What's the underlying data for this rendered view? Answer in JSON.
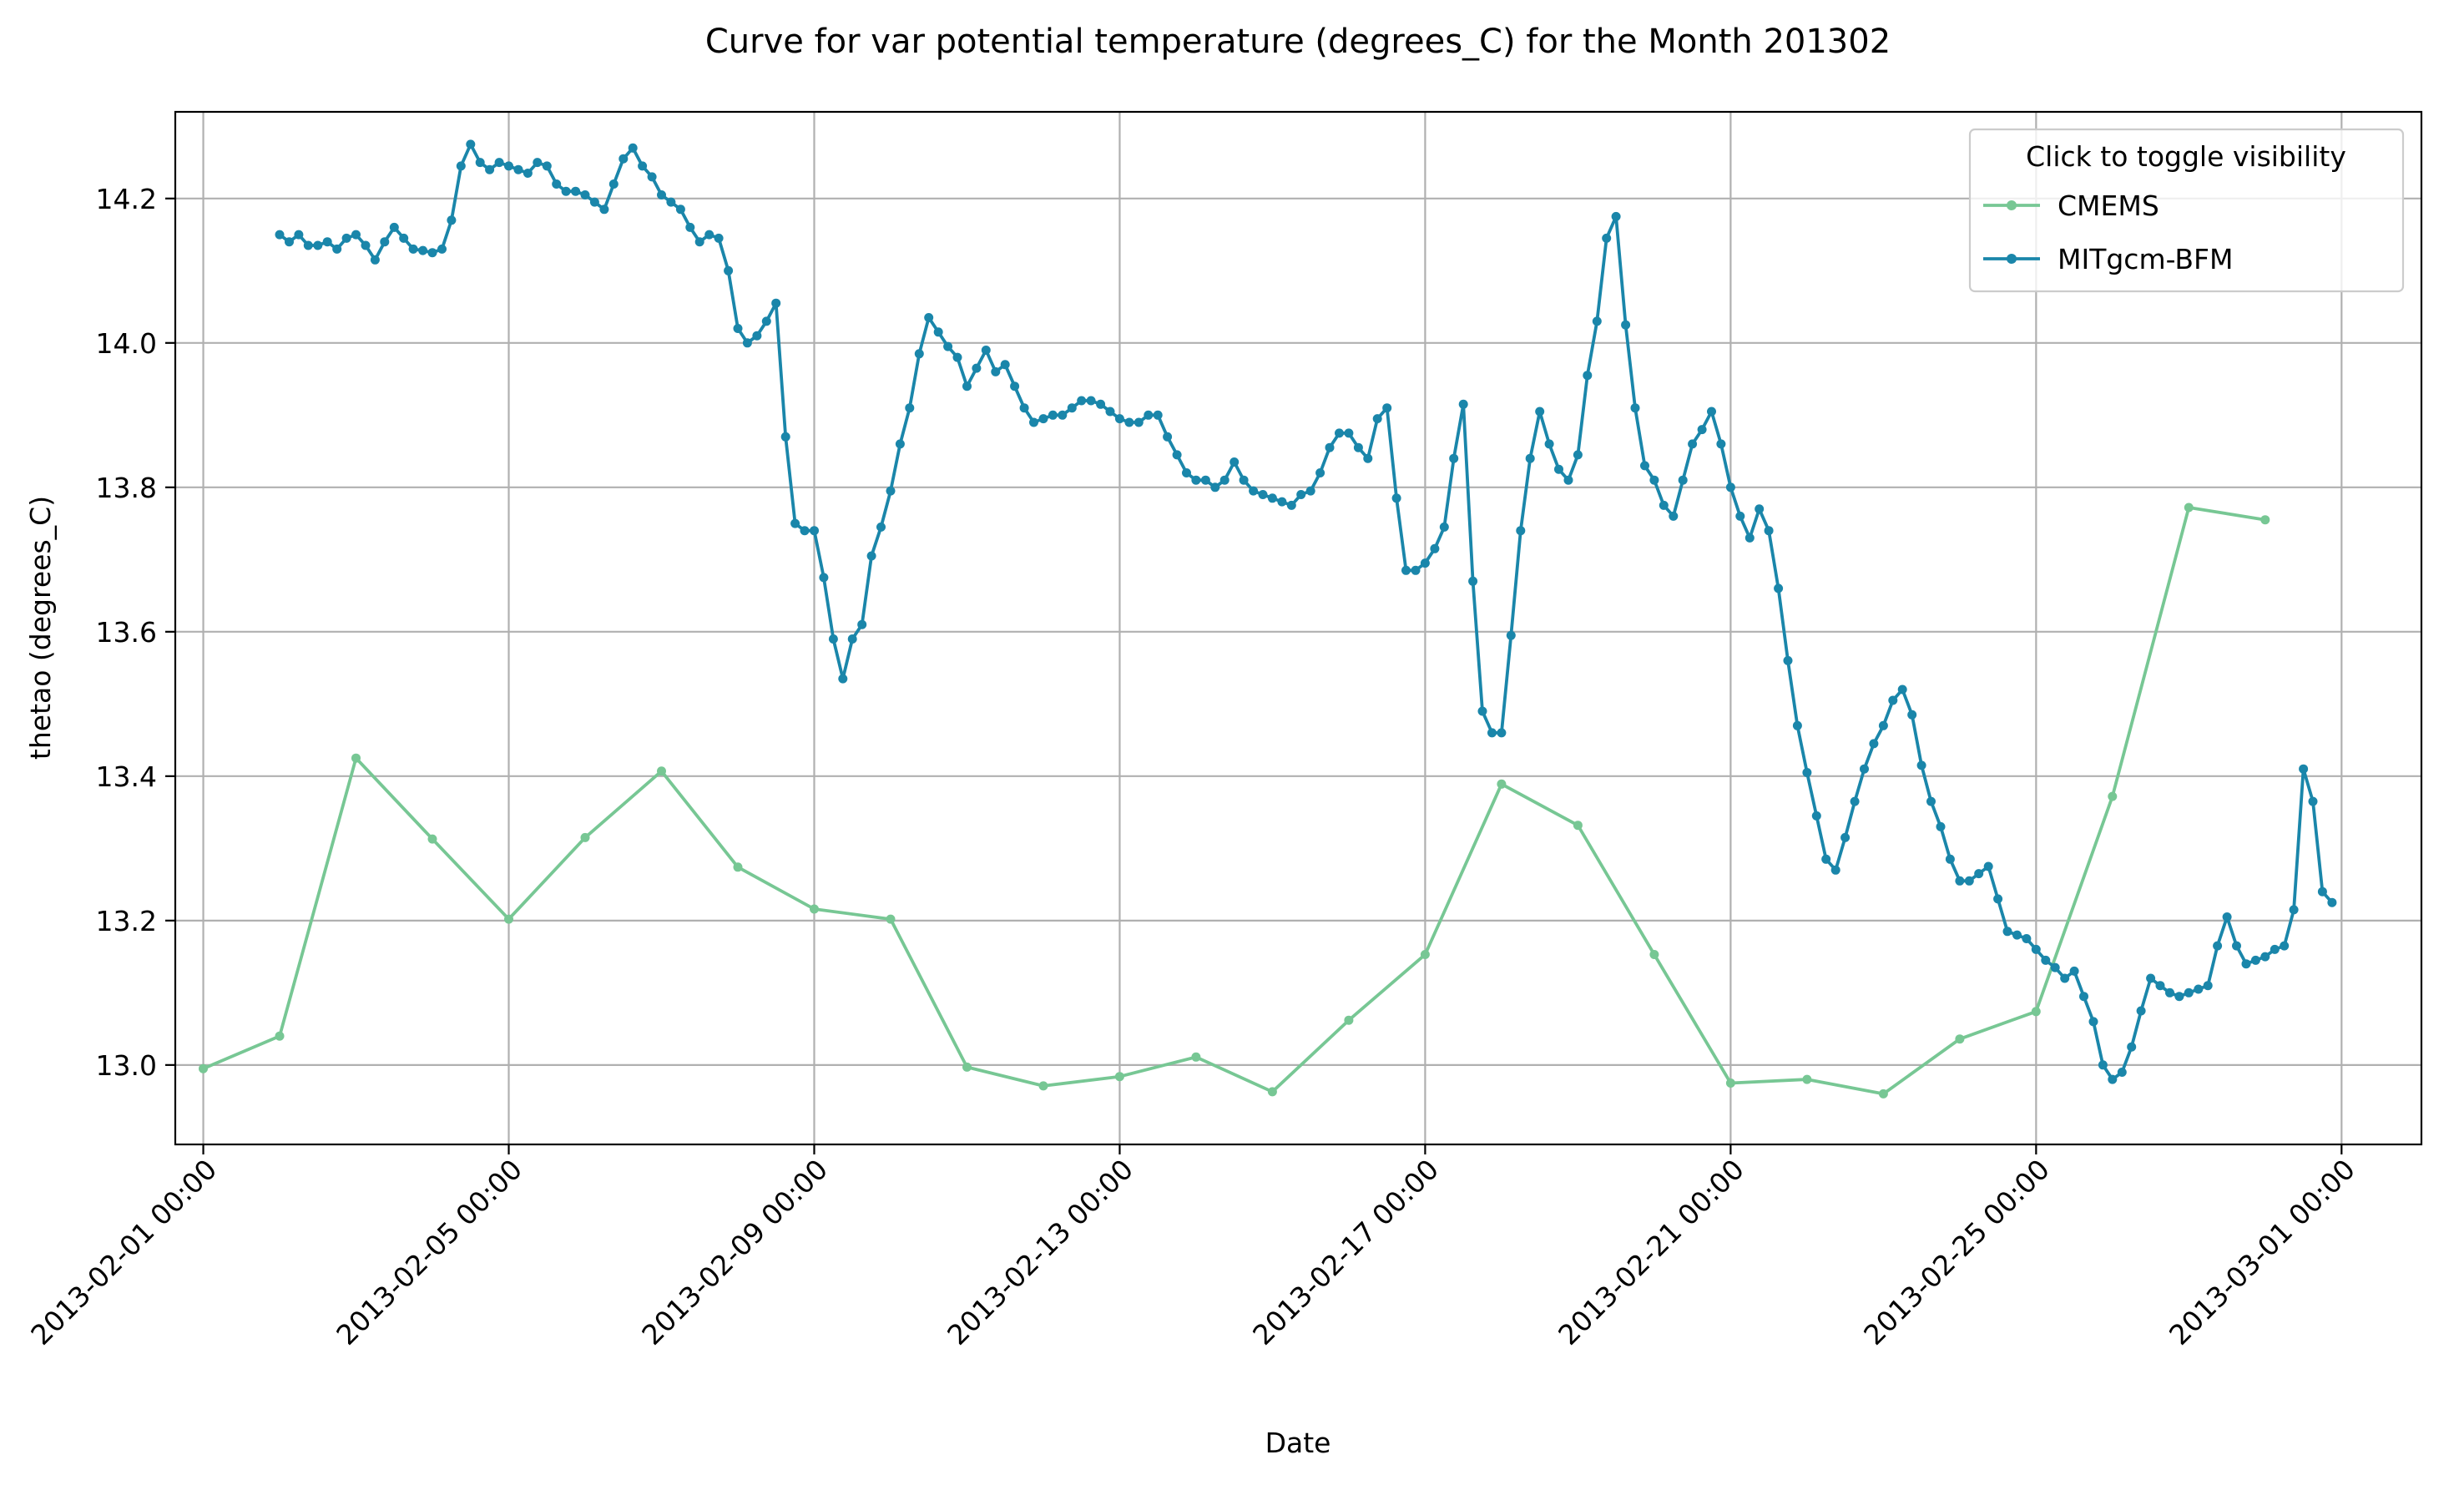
{
  "chart_data": {
    "type": "line",
    "title": "Curve for var potential temperature (degrees_C) for the Month 201302",
    "xlabel": "Date",
    "ylabel": "thetao (degrees_C)",
    "x_axis": "datetime (days since 2013-02-01 00:00)",
    "xlim": [
      "2013-01-31T15:12",
      "2013-03-02T01:06"
    ],
    "ylim": [
      12.89,
      14.32
    ],
    "grid": true,
    "legend": {
      "title": "Click to toggle visibility",
      "position": "top-right"
    },
    "x_ticks": [
      {
        "date": "2013-02-01T00:00",
        "label": "2013-02-01 00:00"
      },
      {
        "date": "2013-02-05T00:00",
        "label": "2013-02-05 00:00"
      },
      {
        "date": "2013-02-09T00:00",
        "label": "2013-02-09 00:00"
      },
      {
        "date": "2013-02-13T00:00",
        "label": "2013-02-13 00:00"
      },
      {
        "date": "2013-02-17T00:00",
        "label": "2013-02-17 00:00"
      },
      {
        "date": "2013-02-21T00:00",
        "label": "2013-02-21 00:00"
      },
      {
        "date": "2013-02-25T00:00",
        "label": "2013-02-25 00:00"
      },
      {
        "date": "2013-03-01T00:00",
        "label": "2013-03-01 00:00"
      }
    ],
    "y_ticks": [
      {
        "value": 13.0,
        "label": "13.0"
      },
      {
        "value": 13.2,
        "label": "13.2"
      },
      {
        "value": 13.4,
        "label": "13.4"
      },
      {
        "value": 13.6,
        "label": "13.6"
      },
      {
        "value": 13.8,
        "label": "13.8"
      },
      {
        "value": 14.0,
        "label": "14.0"
      },
      {
        "value": 14.2,
        "label": "14.2"
      }
    ],
    "series": [
      {
        "name": "CMEMS",
        "color": "#77c794",
        "x": [
          "2013-02-01T00:00",
          "2013-02-02T00:00",
          "2013-02-03T00:00",
          "2013-02-04T00:00",
          "2013-02-05T00:00",
          "2013-02-06T00:00",
          "2013-02-07T00:00",
          "2013-02-08T00:00",
          "2013-02-09T00:00",
          "2013-02-10T00:00",
          "2013-02-11T00:00",
          "2013-02-12T00:00",
          "2013-02-13T00:00",
          "2013-02-14T00:00",
          "2013-02-15T00:00",
          "2013-02-16T00:00",
          "2013-02-17T00:00",
          "2013-02-18T00:00",
          "2013-02-19T00:00",
          "2013-02-20T00:00",
          "2013-02-21T00:00",
          "2013-02-22T00:00",
          "2013-02-23T00:00",
          "2013-02-24T00:00",
          "2013-02-25T00:00",
          "2013-02-26T00:00",
          "2013-02-27T00:00",
          "2013-02-28T00:00"
        ],
        "y": [
          12.995,
          13.04,
          13.425,
          13.313,
          13.202,
          13.315,
          13.407,
          13.274,
          13.216,
          13.202,
          12.997,
          12.971,
          12.984,
          13.011,
          12.963,
          13.062,
          13.153,
          13.389,
          13.332,
          13.153,
          12.975,
          12.98,
          12.96,
          13.036,
          13.074,
          13.372,
          13.772,
          13.755
        ]
      },
      {
        "name": "MITgcm-BFM",
        "color": "#1a86aa",
        "x": [
          "2013-02-02T00:00",
          "2013-02-02T03:00",
          "2013-02-02T06:00",
          "2013-02-02T09:00",
          "2013-02-02T12:00",
          "2013-02-02T15:00",
          "2013-02-02T18:00",
          "2013-02-02T21:00",
          "2013-02-03T00:00",
          "2013-02-03T03:00",
          "2013-02-03T06:00",
          "2013-02-03T09:00",
          "2013-02-03T12:00",
          "2013-02-03T15:00",
          "2013-02-03T18:00",
          "2013-02-03T21:00",
          "2013-02-04T00:00",
          "2013-02-04T03:00",
          "2013-02-04T06:00",
          "2013-02-04T09:00",
          "2013-02-04T12:00",
          "2013-02-04T15:00",
          "2013-02-04T18:00",
          "2013-02-04T21:00",
          "2013-02-05T00:00",
          "2013-02-05T03:00",
          "2013-02-05T06:00",
          "2013-02-05T09:00",
          "2013-02-05T12:00",
          "2013-02-05T15:00",
          "2013-02-05T18:00",
          "2013-02-05T21:00",
          "2013-02-06T00:00",
          "2013-02-06T03:00",
          "2013-02-06T06:00",
          "2013-02-06T09:00",
          "2013-02-06T12:00",
          "2013-02-06T15:00",
          "2013-02-06T18:00",
          "2013-02-06T21:00",
          "2013-02-07T00:00",
          "2013-02-07T03:00",
          "2013-02-07T06:00",
          "2013-02-07T09:00",
          "2013-02-07T12:00",
          "2013-02-07T15:00",
          "2013-02-07T18:00",
          "2013-02-07T21:00",
          "2013-02-08T00:00",
          "2013-02-08T03:00",
          "2013-02-08T06:00",
          "2013-02-08T09:00",
          "2013-02-08T12:00",
          "2013-02-08T15:00",
          "2013-02-08T18:00",
          "2013-02-08T21:00",
          "2013-02-09T00:00",
          "2013-02-09T03:00",
          "2013-02-09T06:00",
          "2013-02-09T09:00",
          "2013-02-09T12:00",
          "2013-02-09T15:00",
          "2013-02-09T18:00",
          "2013-02-09T21:00",
          "2013-02-10T00:00",
          "2013-02-10T03:00",
          "2013-02-10T06:00",
          "2013-02-10T09:00",
          "2013-02-10T12:00",
          "2013-02-10T15:00",
          "2013-02-10T18:00",
          "2013-02-10T21:00",
          "2013-02-11T00:00",
          "2013-02-11T03:00",
          "2013-02-11T06:00",
          "2013-02-11T09:00",
          "2013-02-11T12:00",
          "2013-02-11T15:00",
          "2013-02-11T18:00",
          "2013-02-11T21:00",
          "2013-02-12T00:00",
          "2013-02-12T03:00",
          "2013-02-12T06:00",
          "2013-02-12T09:00",
          "2013-02-12T12:00",
          "2013-02-12T15:00",
          "2013-02-12T18:00",
          "2013-02-12T21:00",
          "2013-02-13T00:00",
          "2013-02-13T03:00",
          "2013-02-13T06:00",
          "2013-02-13T09:00",
          "2013-02-13T12:00",
          "2013-02-13T15:00",
          "2013-02-13T18:00",
          "2013-02-13T21:00",
          "2013-02-14T00:00",
          "2013-02-14T03:00",
          "2013-02-14T06:00",
          "2013-02-14T09:00",
          "2013-02-14T12:00",
          "2013-02-14T15:00",
          "2013-02-14T18:00",
          "2013-02-14T21:00",
          "2013-02-15T00:00",
          "2013-02-15T03:00",
          "2013-02-15T06:00",
          "2013-02-15T09:00",
          "2013-02-15T12:00",
          "2013-02-15T15:00",
          "2013-02-15T18:00",
          "2013-02-15T21:00",
          "2013-02-16T00:00",
          "2013-02-16T03:00",
          "2013-02-16T06:00",
          "2013-02-16T09:00",
          "2013-02-16T12:00",
          "2013-02-16T15:00",
          "2013-02-16T18:00",
          "2013-02-16T21:00",
          "2013-02-17T00:00",
          "2013-02-17T03:00",
          "2013-02-17T06:00",
          "2013-02-17T09:00",
          "2013-02-17T12:00",
          "2013-02-17T15:00",
          "2013-02-17T18:00",
          "2013-02-17T21:00",
          "2013-02-18T00:00",
          "2013-02-18T03:00",
          "2013-02-18T06:00",
          "2013-02-18T09:00",
          "2013-02-18T12:00",
          "2013-02-18T15:00",
          "2013-02-18T18:00",
          "2013-02-18T21:00",
          "2013-02-19T00:00",
          "2013-02-19T03:00",
          "2013-02-19T06:00",
          "2013-02-19T09:00",
          "2013-02-19T12:00",
          "2013-02-19T15:00",
          "2013-02-19T18:00",
          "2013-02-19T21:00",
          "2013-02-20T00:00",
          "2013-02-20T03:00",
          "2013-02-20T06:00",
          "2013-02-20T09:00",
          "2013-02-20T12:00",
          "2013-02-20T15:00",
          "2013-02-20T18:00",
          "2013-02-20T21:00",
          "2013-02-21T00:00",
          "2013-02-21T03:00",
          "2013-02-21T06:00",
          "2013-02-21T09:00",
          "2013-02-21T12:00",
          "2013-02-21T15:00",
          "2013-02-21T18:00",
          "2013-02-21T21:00",
          "2013-02-22T00:00",
          "2013-02-22T03:00",
          "2013-02-22T06:00",
          "2013-02-22T09:00",
          "2013-02-22T12:00",
          "2013-02-22T15:00",
          "2013-02-22T18:00",
          "2013-02-22T21:00",
          "2013-02-23T00:00",
          "2013-02-23T03:00",
          "2013-02-23T06:00",
          "2013-02-23T09:00",
          "2013-02-23T12:00",
          "2013-02-23T15:00",
          "2013-02-23T18:00",
          "2013-02-23T21:00",
          "2013-02-24T00:00",
          "2013-02-24T03:00",
          "2013-02-24T06:00",
          "2013-02-24T09:00",
          "2013-02-24T12:00",
          "2013-02-24T15:00",
          "2013-02-24T18:00",
          "2013-02-24T21:00",
          "2013-02-25T00:00",
          "2013-02-25T03:00",
          "2013-02-25T06:00",
          "2013-02-25T09:00",
          "2013-02-25T12:00",
          "2013-02-25T15:00",
          "2013-02-25T18:00",
          "2013-02-25T21:00",
          "2013-02-26T00:00",
          "2013-02-26T03:00",
          "2013-02-26T06:00",
          "2013-02-26T09:00",
          "2013-02-26T12:00",
          "2013-02-26T15:00",
          "2013-02-26T18:00",
          "2013-02-26T21:00",
          "2013-02-27T00:00",
          "2013-02-27T03:00",
          "2013-02-27T06:00",
          "2013-02-27T09:00",
          "2013-02-27T12:00",
          "2013-02-27T15:00",
          "2013-02-27T18:00",
          "2013-02-27T21:00",
          "2013-02-28T00:00",
          "2013-02-28T03:00",
          "2013-02-28T06:00",
          "2013-02-28T09:00",
          "2013-02-28T12:00",
          "2013-02-28T15:00",
          "2013-02-28T18:00",
          "2013-02-28T21:00"
        ],
        "y": [
          14.15,
          14.14,
          14.15,
          14.135,
          14.135,
          14.14,
          14.13,
          14.145,
          14.15,
          14.135,
          14.115,
          14.14,
          14.16,
          14.145,
          14.13,
          14.128,
          14.125,
          14.13,
          14.17,
          14.245,
          14.275,
          14.25,
          14.24,
          14.25,
          14.245,
          14.24,
          14.235,
          14.25,
          14.245,
          14.22,
          14.21,
          14.21,
          14.205,
          14.195,
          14.185,
          14.22,
          14.255,
          14.27,
          14.245,
          14.23,
          14.205,
          14.195,
          14.185,
          14.16,
          14.14,
          14.15,
          14.145,
          14.1,
          14.02,
          14.0,
          14.01,
          14.03,
          14.055,
          13.87,
          13.75,
          13.74,
          13.74,
          13.675,
          13.59,
          13.535,
          13.59,
          13.61,
          13.705,
          13.745,
          13.795,
          13.86,
          13.91,
          13.985,
          14.035,
          14.015,
          13.995,
          13.98,
          13.94,
          13.965,
          13.99,
          13.96,
          13.97,
          13.94,
          13.91,
          13.89,
          13.895,
          13.9,
          13.9,
          13.91,
          13.92,
          13.92,
          13.915,
          13.905,
          13.895,
          13.89,
          13.89,
          13.9,
          13.9,
          13.87,
          13.845,
          13.82,
          13.81,
          13.81,
          13.8,
          13.81,
          13.835,
          13.81,
          13.795,
          13.79,
          13.785,
          13.78,
          13.775,
          13.79,
          13.795,
          13.82,
          13.855,
          13.875,
          13.875,
          13.855,
          13.84,
          13.895,
          13.91,
          13.785,
          13.685,
          13.685,
          13.695,
          13.715,
          13.745,
          13.84,
          13.915,
          13.67,
          13.49,
          13.46,
          13.46,
          13.595,
          13.74,
          13.84,
          13.905,
          13.86,
          13.825,
          13.81,
          13.845,
          13.955,
          14.03,
          14.145,
          14.175,
          14.025,
          13.91,
          13.83,
          13.81,
          13.775,
          13.76,
          13.81,
          13.86,
          13.88,
          13.905,
          13.86,
          13.8,
          13.76,
          13.73,
          13.77,
          13.74,
          13.66,
          13.56,
          13.47,
          13.405,
          13.345,
          13.285,
          13.27,
          13.315,
          13.365,
          13.41,
          13.445,
          13.47,
          13.505,
          13.52,
          13.485,
          13.415,
          13.365,
          13.33,
          13.285,
          13.255,
          13.255,
          13.265,
          13.275,
          13.23,
          13.185,
          13.18,
          13.175,
          13.16,
          13.145,
          13.135,
          13.12,
          13.13,
          13.095,
          13.06,
          13.0,
          12.98,
          12.99,
          13.025,
          13.075,
          13.12,
          13.11,
          13.1,
          13.095,
          13.1,
          13.105,
          13.11,
          13.165,
          13.205,
          13.165,
          13.14,
          13.145,
          13.15,
          13.16,
          13.165,
          13.215,
          13.41,
          13.365,
          13.24,
          13.225
        ]
      }
    ]
  }
}
